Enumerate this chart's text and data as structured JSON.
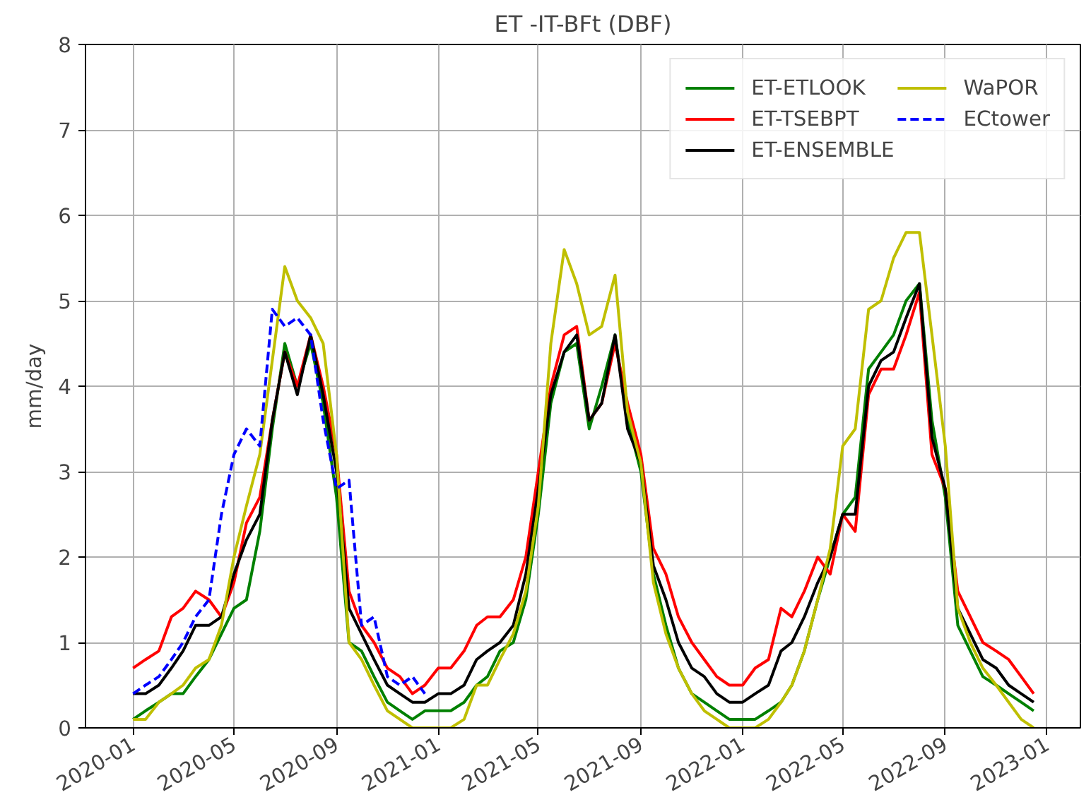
{
  "chart_data": {
    "type": "line",
    "title": "ET -IT-BFt (DBF)",
    "ylabel": "mm/day",
    "x": [
      "2020-01-01",
      "2020-01-16",
      "2020-02-01",
      "2020-02-16",
      "2020-03-01",
      "2020-03-16",
      "2020-04-01",
      "2020-04-16",
      "2020-05-01",
      "2020-05-16",
      "2020-06-01",
      "2020-06-16",
      "2020-07-01",
      "2020-07-16",
      "2020-08-01",
      "2020-08-16",
      "2020-09-01",
      "2020-09-16",
      "2020-10-01",
      "2020-10-16",
      "2020-11-01",
      "2020-11-16",
      "2020-12-01",
      "2020-12-16",
      "2021-01-01",
      "2021-01-16",
      "2021-02-01",
      "2021-02-16",
      "2021-03-01",
      "2021-03-16",
      "2021-04-01",
      "2021-04-16",
      "2021-05-01",
      "2021-05-16",
      "2021-06-01",
      "2021-06-16",
      "2021-07-01",
      "2021-07-16",
      "2021-08-01",
      "2021-08-16",
      "2021-09-01",
      "2021-09-16",
      "2021-10-01",
      "2021-10-16",
      "2021-11-01",
      "2021-11-16",
      "2021-12-01",
      "2021-12-16",
      "2022-01-01",
      "2022-01-16",
      "2022-02-01",
      "2022-02-16",
      "2022-03-01",
      "2022-03-16",
      "2022-04-01",
      "2022-04-16",
      "2022-05-01",
      "2022-05-16",
      "2022-06-01",
      "2022-06-16",
      "2022-07-01",
      "2022-07-16",
      "2022-08-01",
      "2022-08-16",
      "2022-09-01",
      "2022-09-16",
      "2022-10-01",
      "2022-10-16",
      "2022-11-01",
      "2022-11-16",
      "2022-12-01",
      "2022-12-16"
    ],
    "series": [
      {
        "name": "ET-ETLOOK",
        "color": "#008000",
        "line_style": "solid",
        "values": [
          0.1,
          0.2,
          0.3,
          0.4,
          0.4,
          0.6,
          0.8,
          1.1,
          1.4,
          1.5,
          2.3,
          3.5,
          4.5,
          4.0,
          4.5,
          3.8,
          2.7,
          1.0,
          0.9,
          0.6,
          0.3,
          0.2,
          0.1,
          0.2,
          0.2,
          0.2,
          0.3,
          0.5,
          0.6,
          0.9,
          1.0,
          1.5,
          2.5,
          3.8,
          4.4,
          4.5,
          3.5,
          4.0,
          4.6,
          3.6,
          3.0,
          1.8,
          1.2,
          0.7,
          0.4,
          0.3,
          0.2,
          0.1,
          0.1,
          0.1,
          0.2,
          0.3,
          0.5,
          0.9,
          1.5,
          2.0,
          2.5,
          2.7,
          4.2,
          4.4,
          4.6,
          5.0,
          5.2,
          3.6,
          2.7,
          1.2,
          0.9,
          0.6,
          0.5,
          0.4,
          0.3,
          0.2
        ]
      },
      {
        "name": "ET-TSEBPT",
        "color": "#ff0000",
        "line_style": "solid",
        "values": [
          0.7,
          0.8,
          0.9,
          1.3,
          1.4,
          1.6,
          1.5,
          1.3,
          1.7,
          2.4,
          2.7,
          3.6,
          4.4,
          4.0,
          4.6,
          4.0,
          3.2,
          1.6,
          1.2,
          1.0,
          0.7,
          0.6,
          0.4,
          0.5,
          0.7,
          0.7,
          0.9,
          1.2,
          1.3,
          1.3,
          1.5,
          2.0,
          3.0,
          4.0,
          4.6,
          4.7,
          3.6,
          3.8,
          4.5,
          3.8,
          3.2,
          2.1,
          1.8,
          1.3,
          1.0,
          0.8,
          0.6,
          0.5,
          0.5,
          0.7,
          0.8,
          1.4,
          1.3,
          1.6,
          2.0,
          1.8,
          2.5,
          2.3,
          3.9,
          4.2,
          4.2,
          4.6,
          5.1,
          3.2,
          2.8,
          1.6,
          1.3,
          1.0,
          0.9,
          0.8,
          0.6,
          0.4
        ]
      },
      {
        "name": "ET-ENSEMBLE",
        "color": "#000000",
        "line_style": "solid",
        "values": [
          0.4,
          0.4,
          0.5,
          0.7,
          0.9,
          1.2,
          1.2,
          1.3,
          1.8,
          2.2,
          2.5,
          3.6,
          4.4,
          3.9,
          4.6,
          3.9,
          3.0,
          1.4,
          1.1,
          0.8,
          0.5,
          0.4,
          0.3,
          0.3,
          0.4,
          0.4,
          0.5,
          0.8,
          0.9,
          1.0,
          1.2,
          1.8,
          2.8,
          3.9,
          4.4,
          4.6,
          3.6,
          3.8,
          4.6,
          3.5,
          3.1,
          1.9,
          1.5,
          1.0,
          0.7,
          0.6,
          0.4,
          0.3,
          0.3,
          0.4,
          0.5,
          0.9,
          1.0,
          1.3,
          1.7,
          2.0,
          2.5,
          2.5,
          4.0,
          4.3,
          4.4,
          4.8,
          5.2,
          3.4,
          2.8,
          1.4,
          1.1,
          0.8,
          0.7,
          0.5,
          0.4,
          0.3
        ]
      },
      {
        "name": "WaPOR",
        "color": "#bfbf00",
        "line_style": "solid",
        "values": [
          0.1,
          0.1,
          0.3,
          0.4,
          0.5,
          0.7,
          0.8,
          1.2,
          2.0,
          2.6,
          3.2,
          4.3,
          5.4,
          5.0,
          4.8,
          4.5,
          3.2,
          1.0,
          0.8,
          0.5,
          0.2,
          0.1,
          0.0,
          0.0,
          0.0,
          0.0,
          0.1,
          0.5,
          0.5,
          0.8,
          1.1,
          1.6,
          2.6,
          4.5,
          5.6,
          5.2,
          4.6,
          4.7,
          5.3,
          3.7,
          3.1,
          1.7,
          1.1,
          0.7,
          0.4,
          0.2,
          0.1,
          0.0,
          0.0,
          0.0,
          0.1,
          0.3,
          0.5,
          0.9,
          1.5,
          2.1,
          3.3,
          3.5,
          4.9,
          5.0,
          5.5,
          5.8,
          5.8,
          4.6,
          3.3,
          1.4,
          1.0,
          0.7,
          0.5,
          0.3,
          0.1,
          0.0
        ]
      },
      {
        "name": "ECtower",
        "color": "#0000ff",
        "line_style": "dashed",
        "values": [
          0.4,
          0.5,
          0.6,
          0.8,
          1.0,
          1.3,
          1.5,
          2.5,
          3.2,
          3.5,
          3.3,
          4.9,
          4.7,
          4.8,
          4.6,
          3.6,
          2.8,
          2.9,
          1.2,
          1.3,
          0.6,
          0.5,
          0.6,
          0.4,
          null,
          null,
          null,
          null,
          null,
          null,
          null,
          null,
          null,
          null,
          null,
          null,
          null,
          null,
          null,
          null,
          null,
          null,
          null,
          null,
          null,
          null,
          null,
          null,
          null,
          null,
          null,
          null,
          null,
          null,
          null,
          null,
          null,
          null,
          null,
          null,
          null,
          null,
          null,
          null,
          null,
          null,
          null,
          null,
          null,
          null,
          null,
          null
        ]
      }
    ],
    "xlim": [
      "2019-11-05",
      "2023-02-10"
    ],
    "xticks": [
      "2020-01",
      "2020-05",
      "2020-09",
      "2021-01",
      "2021-05",
      "2021-09",
      "2022-01",
      "2022-05",
      "2022-09",
      "2023-01"
    ],
    "ylim": [
      0,
      8
    ],
    "yticks": [
      0,
      1,
      2,
      3,
      4,
      5,
      6,
      7,
      8
    ],
    "grid": true,
    "legend": "top right",
    "marker": "none"
  }
}
